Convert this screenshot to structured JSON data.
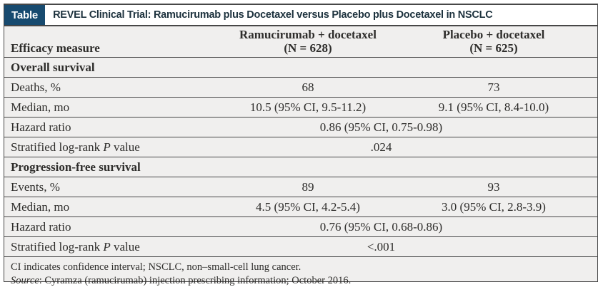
{
  "colors": {
    "accent_navy": "#174a6f",
    "title_text": "#1c313d",
    "row_background": "#f0efee",
    "border": "#474747",
    "body_text": "#2e2d2b"
  },
  "table": {
    "chip_label": "Table",
    "title": "REVEL Clinical Trial: Ramucirumab plus Docetaxel versus Placebo plus Docetaxel in NSCLC",
    "header": {
      "measure_col": "Efficacy measure",
      "arm1": {
        "name": "Ramucirumab + docetaxel",
        "n": "(N = 628)"
      },
      "arm2": {
        "name": "Placebo + docetaxel",
        "n": "(N = 625)"
      }
    },
    "rows": [
      {
        "type": "section",
        "label": "Overall survival"
      },
      {
        "type": "data",
        "label": "Deaths, %",
        "ramucirumab": "68",
        "placebo": "73"
      },
      {
        "type": "data",
        "label": "Median, mo",
        "ramucirumab": "10.5 (95% CI, 9.5-11.2)",
        "placebo": "9.1 (95% CI, 8.4-10.0)"
      },
      {
        "type": "combined",
        "label": "Hazard ratio",
        "combined": "0.86 (95% CI, 0.75-0.98)"
      },
      {
        "type": "combined",
        "label_prefix": "Stratified log-rank ",
        "label_italic": "P",
        "label_suffix": " value",
        "combined": ".024"
      },
      {
        "type": "section",
        "label": "Progression-free survival"
      },
      {
        "type": "data",
        "label": "Events, %",
        "ramucirumab": "89",
        "placebo": "93"
      },
      {
        "type": "data",
        "label": "Median, mo",
        "ramucirumab": "4.5 (95% CI, 4.2-5.4)",
        "placebo": "3.0 (95% CI, 2.8-3.9)"
      },
      {
        "type": "combined",
        "label": "Hazard ratio",
        "combined": "0.76 (95% CI, 0.68-0.86)"
      },
      {
        "type": "combined",
        "label_prefix": "Stratified log-rank ",
        "label_italic": "P",
        "label_suffix": " value",
        "combined": "<.001"
      }
    ],
    "footnotes": {
      "abbreviations": "CI indicates confidence interval; NSCLC, non–small-cell lung cancer.",
      "source_label": "Source",
      "source_rest": ": Cyramza (ramucirumab) injection prescribing information; October 2016."
    }
  }
}
